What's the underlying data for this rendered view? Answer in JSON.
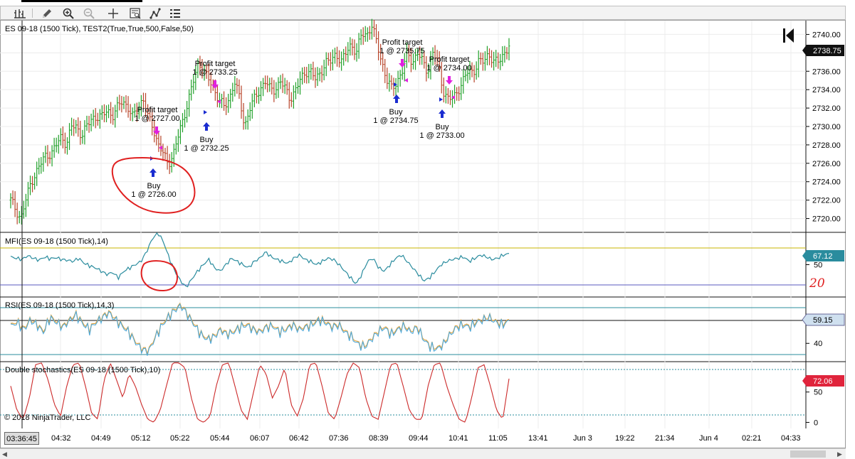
{
  "chart_data": [
    {
      "type": "line",
      "title": "ES 09-18 (1500 Tick), TEST2(True,True,500,False,50)",
      "ylim": [
        2718.5,
        2741.5
      ],
      "ytick_labels": [
        "2740.00",
        "2738.00",
        "2736.00",
        "2734.00",
        "2732.00",
        "2730.00",
        "2728.00",
        "2726.00",
        "2724.00",
        "2722.00",
        "2720.00"
      ],
      "last_value": "2738.75",
      "price_series": [
        2722,
        2721,
        2720,
        2722,
        2724,
        2725,
        2726,
        2727,
        2727,
        2728,
        2729,
        2728,
        2730,
        2730,
        2729,
        2730,
        2731,
        2731,
        2731,
        2732,
        2731,
        2732,
        2733,
        2732,
        2731,
        2732,
        2733,
        2731,
        2730,
        2728,
        2727,
        2726,
        2727,
        2729,
        2731,
        2733,
        2735,
        2737,
        2736,
        2735,
        2734,
        2733,
        2732,
        2733,
        2735,
        2733,
        2730,
        2732,
        2733,
        2734,
        2735,
        2734,
        2734,
        2735,
        2734,
        2733,
        2734,
        2735,
        2736,
        2736,
        2735,
        2736,
        2737,
        2737,
        2738,
        2737,
        2738,
        2739,
        2738,
        2740,
        2740,
        2741,
        2739,
        2737,
        2735,
        2734,
        2735,
        2736,
        2738,
        2737,
        2738,
        2737,
        2736,
        2738,
        2737,
        2734,
        2733,
        2733,
        2734,
        2735,
        2736,
        2736,
        2737,
        2737,
        2738,
        2737,
        2737,
        2738,
        2738.75
      ],
      "annotations": [
        {
          "label": "Profit target",
          "value": "1 @ 2727.00"
        },
        {
          "label": "Buy",
          "value": "1 @ 2726.00"
        },
        {
          "label": "Profit target",
          "value": "1 @ 2733.25"
        },
        {
          "label": "Buy",
          "value": "1 @ 2732.25"
        },
        {
          "label": "Profit target",
          "value": "1 @ 2735.75"
        },
        {
          "label": "Buy",
          "value": "1 @ 2734.75"
        },
        {
          "label": "Profit target",
          "value": "1 @ 2734.00"
        },
        {
          "label": "Buy",
          "value": "1 @ 2733.00"
        }
      ]
    },
    {
      "type": "line",
      "title": "MFI(ES 09-18 (1500 Tick),14)",
      "ylim": [
        0,
        100
      ],
      "ytick_labels": [
        "50"
      ],
      "last_value": "67.12",
      "handwritten_note": "20",
      "series": [
        62,
        60,
        58,
        64,
        60,
        57,
        62,
        59,
        61,
        58,
        57,
        55,
        60,
        52,
        48,
        45,
        40,
        35,
        38,
        30,
        40,
        45,
        50,
        55,
        70,
        90,
        100,
        85,
        60,
        40,
        25,
        15,
        28,
        40,
        50,
        58,
        45,
        40,
        50,
        60,
        55,
        50,
        45,
        55,
        60,
        70,
        62,
        58,
        55,
        52,
        60,
        65,
        58,
        55,
        50,
        55,
        60,
        58,
        50,
        40,
        30,
        20,
        35,
        55,
        60,
        45,
        40,
        50,
        60,
        65,
        55,
        45,
        35,
        25,
        30,
        40,
        50,
        55,
        58,
        60,
        62,
        55,
        60,
        65,
        62,
        58,
        60,
        65,
        67.12
      ]
    },
    {
      "type": "line",
      "title": "RSI(ES 09-18 (1500 Tick),14,3)",
      "ylim": [
        25,
        78
      ],
      "ytick_labels": [
        "40"
      ],
      "last_value": "59.15",
      "series": [
        55,
        58,
        52,
        60,
        56,
        50,
        62,
        58,
        54,
        60,
        64,
        57,
        52,
        58,
        62,
        66,
        60,
        55,
        50,
        42,
        36,
        34,
        45,
        55,
        62,
        68,
        72,
        64,
        56,
        48,
        44,
        46,
        52,
        48,
        50,
        54,
        56,
        52,
        50,
        54,
        55,
        50,
        52,
        56,
        52,
        54,
        56,
        60,
        58,
        54,
        56,
        50,
        46,
        40,
        38,
        44,
        50,
        54,
        48,
        52,
        55,
        50,
        54,
        44,
        38,
        36,
        40,
        48,
        54,
        56,
        54,
        58,
        60,
        62,
        58,
        56,
        59.15
      ]
    },
    {
      "type": "line",
      "title": "Double stochastics(ES 09-18 (1500 Tick),10)",
      "ylim": [
        0,
        100
      ],
      "ytick_labels": [
        "50",
        "0"
      ],
      "last_value": "72.06",
      "series": [
        60,
        20,
        5,
        40,
        95,
        98,
        70,
        30,
        10,
        60,
        95,
        98,
        60,
        15,
        5,
        70,
        98,
        70,
        40,
        80,
        60,
        30,
        5,
        0,
        20,
        60,
        98,
        98,
        90,
        40,
        5,
        0,
        10,
        60,
        95,
        98,
        60,
        20,
        5,
        50,
        95,
        80,
        40,
        60,
        90,
        30,
        10,
        40,
        95,
        98,
        60,
        15,
        5,
        40,
        80,
        98,
        90,
        40,
        10,
        5,
        50,
        95,
        98,
        60,
        20,
        5,
        5,
        60,
        95,
        98,
        60,
        30,
        5,
        0,
        40,
        90,
        95,
        60,
        20,
        5,
        72.06
      ]
    }
  ],
  "copyright": "© 2018 NinjaTrader, LLC",
  "time_box": "03:36:45",
  "x_tick_labels": [
    "04:32",
    "04:49",
    "05:12",
    "05:22",
    "05:44",
    "06:07",
    "06:42",
    "07:36",
    "08:39",
    "09:44",
    "10:41",
    "11:05",
    "13:41",
    "Jun 3",
    "19:22",
    "21:34",
    "Jun 4",
    "02:21",
    "04:33"
  ],
  "toolbar": [
    "bar-type-icon",
    "pencil-icon",
    "zoom-in-icon",
    "zoom-out-icon",
    "crosshair-icon",
    "data-box-icon",
    "strategy-icon",
    "properties-icon"
  ],
  "colors": {
    "up_bar": "#21a12a",
    "down_bar": "#b8452a",
    "mfi_line": "#2a8c9e",
    "rsi_line": "#4fa8d8",
    "rsi_avg": "#e2a23a",
    "stoch_line": "#cc2a2a",
    "annotation_red": "#e02020",
    "target_arrow": "#e020e0",
    "buy_arrow": "#1a2cd0"
  }
}
